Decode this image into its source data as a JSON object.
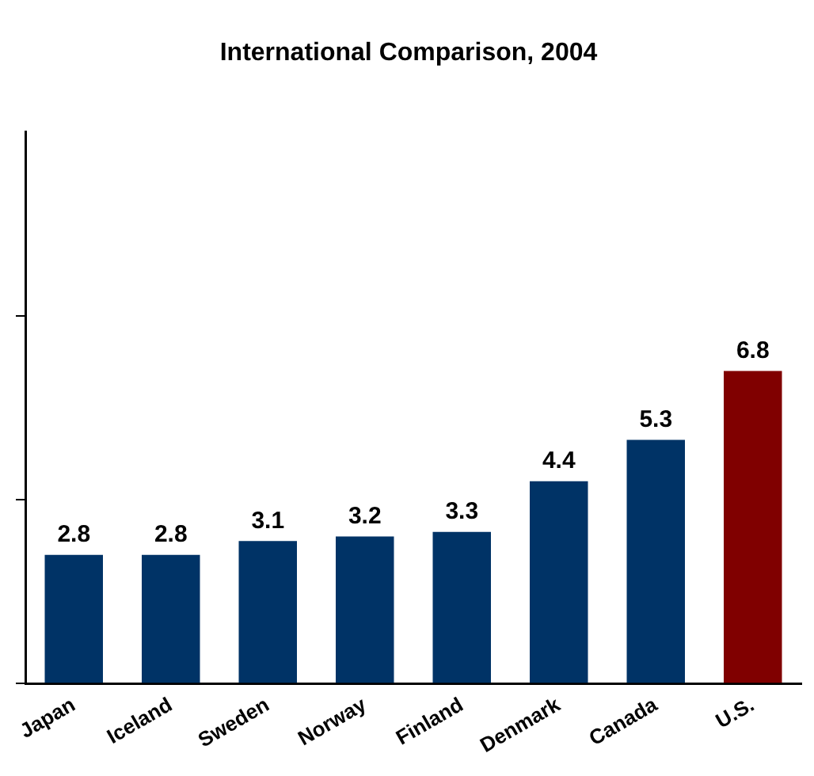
{
  "chart_data": {
    "type": "bar",
    "title": "International Comparison, 2004",
    "categories": [
      "Japan",
      "Iceland",
      "Sweden",
      "Norway",
      "Finland",
      "Denmark",
      "Canada",
      "U.S."
    ],
    "values": [
      2.8,
      2.8,
      3.1,
      3.2,
      3.3,
      4.4,
      5.3,
      6.8
    ],
    "colors": [
      "#003366",
      "#003366",
      "#003366",
      "#003366",
      "#003366",
      "#003366",
      "#003366",
      "#800000"
    ],
    "ylim": [
      0,
      12
    ],
    "yticks": [
      {
        "value": 0,
        "label": null
      },
      {
        "value": 4,
        "label": null
      },
      {
        "value": 8,
        "label": null
      }
    ],
    "data_labels": true,
    "grid": false,
    "legend": false
  }
}
